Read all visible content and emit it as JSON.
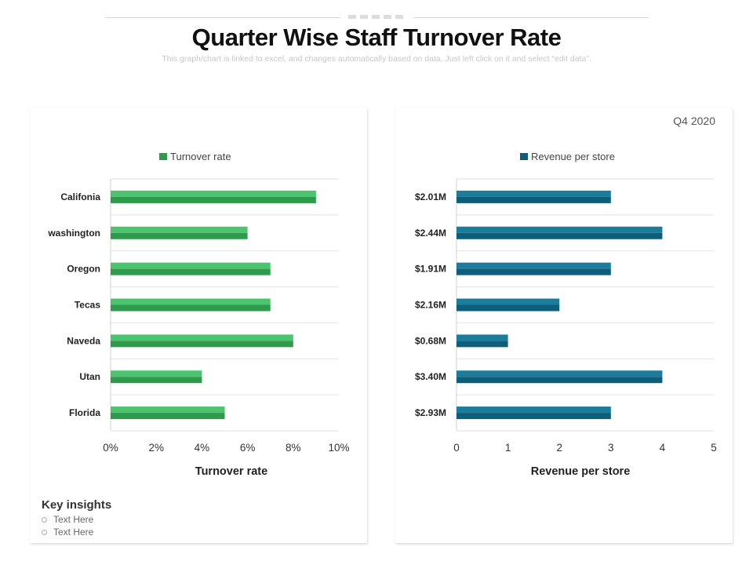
{
  "header": {
    "title": "Quarter Wise Staff Turnover Rate",
    "subtitle": "This graph/chart is linked to excel, and changes automatically based on data. Just left click on it and select “edit data”."
  },
  "period_label": "Q4 2020",
  "insights": {
    "title": "Key insights",
    "items": [
      "Text Here",
      "Text Here"
    ]
  },
  "colors": {
    "turnover_top": "#4CC46E",
    "turnover_bottom": "#2E9A4C",
    "revenue_top": "#1C7C9C",
    "revenue_bottom": "#0C5E7A"
  },
  "chart_data": [
    {
      "type": "bar",
      "orientation": "horizontal",
      "categories": [
        "Califonia",
        "washington",
        "Oregon",
        "Tecas",
        "Naveda",
        "Utan",
        "Florida"
      ],
      "series": [
        {
          "name": "Turnover rate",
          "values": [
            9,
            6,
            7,
            7,
            8,
            4,
            5
          ]
        }
      ],
      "xlabel": "Turnover rate",
      "xlim": [
        0,
        10
      ],
      "xticks": [
        "0%",
        "2%",
        "4%",
        "6%",
        "8%",
        "10%"
      ],
      "grid": true,
      "legend": "top"
    },
    {
      "type": "bar",
      "orientation": "horizontal",
      "categories": [
        "$2.01M",
        "$2.44M",
        "$1.91M",
        "$2.16M",
        "$0.68M",
        "$3.40M",
        "$2.93M"
      ],
      "series": [
        {
          "name": "Revenue per store",
          "values": [
            3,
            4,
            3,
            2,
            1,
            4,
            3
          ]
        }
      ],
      "xlabel": "Revenue per store",
      "xlim": [
        0,
        5
      ],
      "xticks": [
        "0",
        "1",
        "2",
        "3",
        "4",
        "5"
      ],
      "grid": true,
      "legend": "top"
    }
  ]
}
